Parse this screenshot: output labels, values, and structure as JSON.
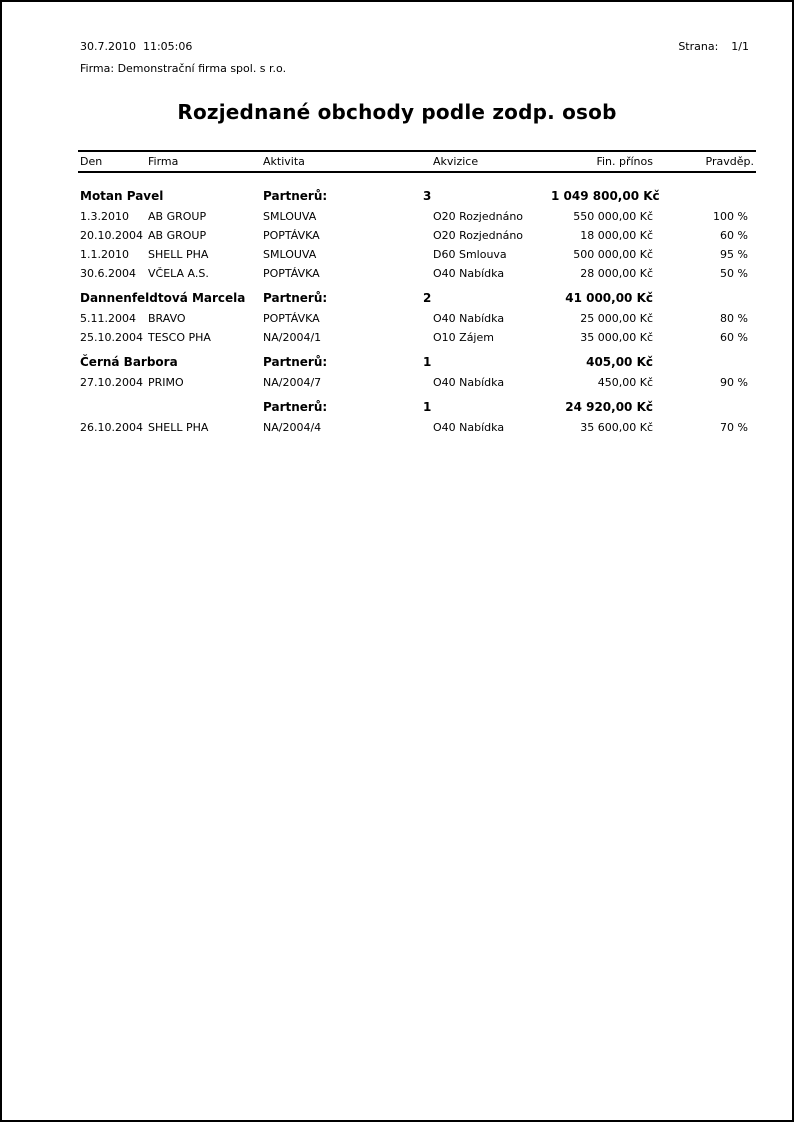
{
  "colors": {
    "text": "#000000",
    "page_background": "#ffffff",
    "border": "#000000",
    "rule": "#000000"
  },
  "header": {
    "datetime": "30.7.2010  11:05:06",
    "company": "Firma: Demonstrační firma spol. s r.o.",
    "page_label": "Strana:",
    "page_value": "1/1"
  },
  "title": "Rozjednané obchody podle zodp. osob",
  "table": {
    "columns": [
      "Den",
      "Firma",
      "Aktivita",
      "Akvizice",
      "Fin. přínos",
      "Pravděp."
    ],
    "partners_label": "Partnerů:",
    "groups": [
      {
        "name": "Motan Pavel",
        "count": "3",
        "total": "1 049 800,00 Kč",
        "rows": [
          {
            "den": "1.3.2010",
            "firma": "AB GROUP",
            "aktivita": "SMLOUVA",
            "akvizice": "O20 Rozjednáno",
            "prinos": "550 000,00 Kč",
            "pravdep": "100 %"
          },
          {
            "den": "20.10.2004",
            "firma": "AB GROUP",
            "aktivita": "POPTÁVKA",
            "akvizice": "O20 Rozjednáno",
            "prinos": "18 000,00 Kč",
            "pravdep": "60 %"
          },
          {
            "den": "1.1.2010",
            "firma": "SHELL PHA",
            "aktivita": "SMLOUVA",
            "akvizice": "D60 Smlouva",
            "prinos": "500 000,00 Kč",
            "pravdep": "95 %"
          },
          {
            "den": "30.6.2004",
            "firma": "VČELA A.S.",
            "aktivita": "POPTÁVKA",
            "akvizice": "O40 Nabídka",
            "prinos": "28 000,00 Kč",
            "pravdep": "50 %"
          }
        ]
      },
      {
        "name": "Dannenfeldtová Marcela",
        "count": "2",
        "total": "41 000,00 Kč",
        "rows": [
          {
            "den": "5.11.2004",
            "firma": "BRAVO",
            "aktivita": "POPTÁVKA",
            "akvizice": "O40 Nabídka",
            "prinos": "25 000,00 Kč",
            "pravdep": "80 %"
          },
          {
            "den": "25.10.2004",
            "firma": "TESCO PHA",
            "aktivita": "NA/2004/1",
            "akvizice": "O10 Zájem",
            "prinos": "35 000,00 Kč",
            "pravdep": "60 %"
          }
        ]
      },
      {
        "name": "Černá Barbora",
        "count": "1",
        "total": "405,00 Kč",
        "rows": [
          {
            "den": "27.10.2004",
            "firma": "PRIMO",
            "aktivita": "NA/2004/7",
            "akvizice": "O40 Nabídka",
            "prinos": "450,00 Kč",
            "pravdep": "90 %"
          }
        ]
      },
      {
        "name": "",
        "count": "1",
        "total": "24 920,00 Kč",
        "rows": [
          {
            "den": "26.10.2004",
            "firma": "SHELL PHA",
            "aktivita": "NA/2004/4",
            "akvizice": "O40 Nabídka",
            "prinos": "35 600,00 Kč",
            "pravdep": "70 %"
          }
        ]
      }
    ]
  }
}
